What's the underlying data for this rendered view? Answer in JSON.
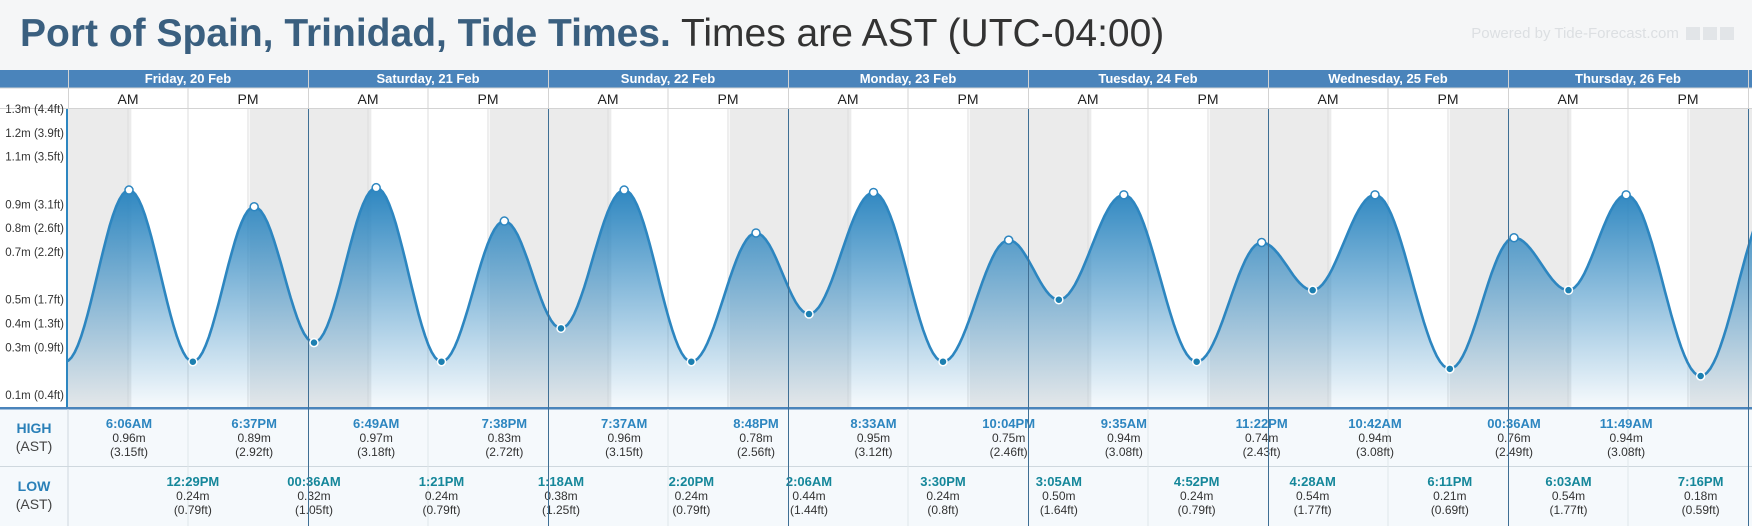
{
  "header": {
    "title": "Port of Spain, Trinidad, Tide Times.",
    "timezone_note": "Times are AST (UTC-04:00)",
    "powered_by": "Powered by Tide-Forecast.com"
  },
  "table": {
    "high_label": "HIGH",
    "low_label": "LOW",
    "tz_label": "(AST)",
    "am_label": "AM",
    "pm_label": "PM"
  },
  "colors": {
    "header_blue": "#4a84bb",
    "line": "#2d86c0",
    "fill_top": "#2d86c0",
    "night_shade": "#ebebeb",
    "high_time": "#2d86c0",
    "low_time": "#15879a"
  },
  "chart_data": {
    "type": "area",
    "title": "Port of Spain, Trinidad, Tide Times.",
    "y_unit": "m",
    "ylim": [
      0.05,
      1.3
    ],
    "y_ticks": [
      {
        "value": 0.1,
        "label": "0.1m (0.4ft)"
      },
      {
        "value": 0.3,
        "label": "0.3m (0.9ft)"
      },
      {
        "value": 0.4,
        "label": "0.4m (1.3ft)"
      },
      {
        "value": 0.5,
        "label": "0.5m (1.7ft)"
      },
      {
        "value": 0.7,
        "label": "0.7m (2.2ft)"
      },
      {
        "value": 0.8,
        "label": "0.8m (2.6ft)"
      },
      {
        "value": 0.9,
        "label": "0.9m (3.1ft)"
      },
      {
        "value": 1.1,
        "label": "1.1m (3.5ft)"
      },
      {
        "value": 1.2,
        "label": "1.2m (3.9ft)"
      },
      {
        "value": 1.3,
        "label": "1.3m (4.4ft)"
      }
    ],
    "days": [
      {
        "label": "Friday, 20 Feb",
        "high": [
          {
            "time": "6:06AM",
            "m": "0.96m",
            "ft": "(3.15ft)"
          },
          {
            "time": "6:37PM",
            "m": "0.89m",
            "ft": "(2.92ft)"
          }
        ],
        "low": [
          {
            "time": "12:29PM",
            "m": "0.24m",
            "ft": "(0.79ft)"
          }
        ]
      },
      {
        "label": "Saturday, 21 Feb",
        "high": [
          {
            "time": "6:49AM",
            "m": "0.97m",
            "ft": "(3.18ft)"
          },
          {
            "time": "7:38PM",
            "m": "0.83m",
            "ft": "(2.72ft)"
          }
        ],
        "low": [
          {
            "time": "00:36AM",
            "m": "0.32m",
            "ft": "(1.05ft)"
          },
          {
            "time": "1:21PM",
            "m": "0.24m",
            "ft": "(0.79ft)"
          }
        ]
      },
      {
        "label": "Sunday, 22 Feb",
        "high": [
          {
            "time": "7:37AM",
            "m": "0.96m",
            "ft": "(3.15ft)"
          },
          {
            "time": "8:48PM",
            "m": "0.78m",
            "ft": "(2.56ft)"
          }
        ],
        "low": [
          {
            "time": "1:18AM",
            "m": "0.38m",
            "ft": "(1.25ft)"
          },
          {
            "time": "2:20PM",
            "m": "0.24m",
            "ft": "(0.79ft)"
          }
        ]
      },
      {
        "label": "Monday, 23 Feb",
        "high": [
          {
            "time": "8:33AM",
            "m": "0.95m",
            "ft": "(3.12ft)"
          },
          {
            "time": "10:04PM",
            "m": "0.75m",
            "ft": "(2.46ft)"
          }
        ],
        "low": [
          {
            "time": "2:06AM",
            "m": "0.44m",
            "ft": "(1.44ft)"
          },
          {
            "time": "3:30PM",
            "m": "0.24m",
            "ft": "(0.8ft)"
          }
        ]
      },
      {
        "label": "Tuesday, 24 Feb",
        "high": [
          {
            "time": "9:35AM",
            "m": "0.94m",
            "ft": "(3.08ft)"
          },
          {
            "time": "11:22PM",
            "m": "0.74m",
            "ft": "(2.43ft)"
          }
        ],
        "low": [
          {
            "time": "3:05AM",
            "m": "0.50m",
            "ft": "(1.64ft)"
          },
          {
            "time": "4:52PM",
            "m": "0.24m",
            "ft": "(0.79ft)"
          }
        ]
      },
      {
        "label": "Wednesday, 25 Feb",
        "high": [
          {
            "time": "10:42AM",
            "m": "0.94m",
            "ft": "(3.08ft)"
          }
        ],
        "low": [
          {
            "time": "4:28AM",
            "m": "0.54m",
            "ft": "(1.77ft)"
          },
          {
            "time": "6:11PM",
            "m": "0.21m",
            "ft": "(0.69ft)"
          }
        ]
      },
      {
        "label": "Thursday, 26 Feb",
        "high": [
          {
            "time": "00:36AM",
            "m": "0.76m",
            "ft": "(2.49ft)"
          },
          {
            "time": "11:49AM",
            "m": "0.94m",
            "ft": "(3.08ft)"
          }
        ],
        "low": [
          {
            "time": "6:03AM",
            "m": "0.54m",
            "ft": "(1.77ft)"
          },
          {
            "time": "7:16PM",
            "m": "0.18m",
            "ft": "(0.59ft)"
          }
        ]
      }
    ],
    "daylight": {
      "sunrise": "6:20AM",
      "sunset": "6:10PM"
    }
  }
}
